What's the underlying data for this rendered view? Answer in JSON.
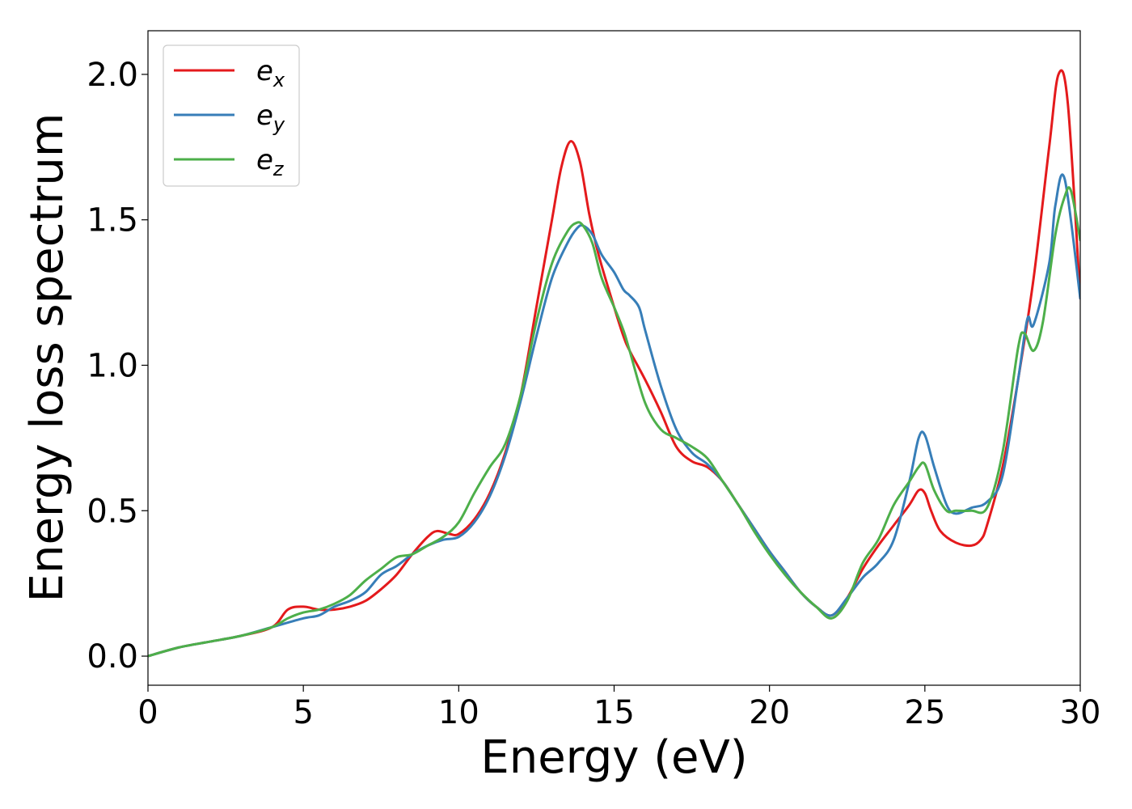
{
  "chart_data": {
    "type": "line",
    "title": "",
    "xlabel": "Energy (eV)",
    "ylabel": "Energy loss spectrum",
    "xlim": [
      0,
      30
    ],
    "ylim": [
      -0.1,
      2.15
    ],
    "xticks": [
      0,
      5,
      10,
      15,
      20,
      25,
      30
    ],
    "xtick_labels": [
      "0",
      "5",
      "10",
      "15",
      "20",
      "25",
      "30"
    ],
    "yticks": [
      0.0,
      0.5,
      1.0,
      1.5,
      2.0
    ],
    "ytick_labels": [
      "0.0",
      "0.5",
      "1.0",
      "1.5",
      "2.0"
    ],
    "grid": false,
    "legend_position": "top-left",
    "series": [
      {
        "name": "e_x",
        "label_base": "e",
        "label_sub": "x",
        "color": "#e41a1c",
        "x": [
          0,
          1,
          2,
          3,
          4,
          4.5,
          5,
          5.5,
          6,
          6.5,
          7,
          7.5,
          8,
          8.5,
          9,
          9.3,
          9.7,
          10,
          10.5,
          11,
          11.5,
          12,
          12.5,
          13,
          13.3,
          13.6,
          13.9,
          14.2,
          14.5,
          15,
          15.3,
          15.5,
          16,
          16.5,
          17,
          17.5,
          18,
          18.5,
          19,
          19.5,
          20,
          20.5,
          21,
          21.5,
          22,
          22.5,
          23,
          23.5,
          24,
          24.5,
          24.8,
          25,
          25.2,
          25.5,
          26,
          26.5,
          26.8,
          27,
          27.5,
          28,
          28.5,
          29,
          29.3,
          29.6,
          30
        ],
        "y": [
          0,
          0.03,
          0.05,
          0.07,
          0.1,
          0.16,
          0.17,
          0.16,
          0.16,
          0.17,
          0.19,
          0.23,
          0.28,
          0.35,
          0.41,
          0.43,
          0.42,
          0.42,
          0.47,
          0.56,
          0.7,
          0.9,
          1.2,
          1.5,
          1.68,
          1.77,
          1.7,
          1.52,
          1.38,
          1.2,
          1.1,
          1.05,
          0.95,
          0.84,
          0.72,
          0.67,
          0.65,
          0.6,
          0.52,
          0.44,
          0.36,
          0.29,
          0.22,
          0.17,
          0.14,
          0.2,
          0.3,
          0.38,
          0.45,
          0.52,
          0.57,
          0.56,
          0.5,
          0.43,
          0.39,
          0.38,
          0.4,
          0.45,
          0.65,
          0.95,
          1.3,
          1.75,
          2.0,
          1.9,
          1.23
        ]
      },
      {
        "name": "e_y",
        "label_base": "e",
        "label_sub": "y",
        "color": "#377eb8",
        "x": [
          0,
          1,
          2,
          3,
          4,
          5,
          5.5,
          6,
          6.5,
          7,
          7.5,
          8,
          8.5,
          9,
          9.5,
          10,
          10.5,
          11,
          11.5,
          12,
          12.5,
          13,
          13.5,
          13.8,
          14,
          14.3,
          14.6,
          15,
          15.3,
          15.5,
          15.8,
          16,
          16.5,
          17,
          17.5,
          18,
          18.5,
          19,
          19.5,
          20,
          20.5,
          21,
          21.5,
          22,
          22.5,
          23,
          23.5,
          24,
          24.5,
          24.8,
          25,
          25.3,
          25.7,
          26,
          26.5,
          27,
          27.5,
          28,
          28.3,
          28.5,
          29,
          29.2,
          29.5,
          30
        ],
        "y": [
          0,
          0.03,
          0.05,
          0.07,
          0.1,
          0.13,
          0.14,
          0.17,
          0.19,
          0.22,
          0.28,
          0.31,
          0.35,
          0.38,
          0.4,
          0.41,
          0.46,
          0.55,
          0.69,
          0.88,
          1.1,
          1.3,
          1.42,
          1.47,
          1.48,
          1.45,
          1.38,
          1.32,
          1.26,
          1.24,
          1.2,
          1.12,
          0.93,
          0.78,
          0.7,
          0.66,
          0.6,
          0.52,
          0.44,
          0.36,
          0.29,
          0.22,
          0.17,
          0.14,
          0.2,
          0.27,
          0.32,
          0.4,
          0.6,
          0.75,
          0.76,
          0.65,
          0.52,
          0.49,
          0.51,
          0.53,
          0.62,
          0.95,
          1.16,
          1.14,
          1.35,
          1.55,
          1.64,
          1.23
        ]
      },
      {
        "name": "e_z",
        "label_base": "e",
        "label_sub": "z",
        "color": "#4daf4a",
        "x": [
          0,
          1,
          2,
          3,
          4,
          4.5,
          5,
          5.5,
          6,
          6.5,
          7,
          7.5,
          8,
          8.5,
          9,
          9.5,
          10,
          10.5,
          11,
          11.5,
          12,
          12.5,
          13,
          13.5,
          13.8,
          14,
          14.3,
          14.6,
          15,
          15.3,
          15.5,
          16,
          16.5,
          17,
          17.5,
          18,
          18.5,
          19,
          19.5,
          20,
          20.5,
          21,
          21.5,
          22,
          22.5,
          23,
          23.5,
          24,
          24.5,
          24.8,
          25,
          25.3,
          25.7,
          26,
          26.5,
          27,
          27.5,
          28,
          28.2,
          28.5,
          28.8,
          29.2,
          29.5,
          29.7,
          30
        ],
        "y": [
          0,
          0.03,
          0.05,
          0.07,
          0.1,
          0.13,
          0.15,
          0.16,
          0.18,
          0.21,
          0.26,
          0.3,
          0.34,
          0.35,
          0.38,
          0.41,
          0.46,
          0.56,
          0.65,
          0.73,
          0.9,
          1.15,
          1.35,
          1.46,
          1.49,
          1.48,
          1.42,
          1.3,
          1.2,
          1.12,
          1.05,
          0.87,
          0.78,
          0.75,
          0.72,
          0.68,
          0.6,
          0.52,
          0.43,
          0.35,
          0.28,
          0.22,
          0.17,
          0.13,
          0.19,
          0.32,
          0.4,
          0.52,
          0.6,
          0.65,
          0.66,
          0.57,
          0.5,
          0.5,
          0.5,
          0.51,
          0.7,
          1.06,
          1.11,
          1.05,
          1.15,
          1.45,
          1.58,
          1.6,
          1.43
        ]
      }
    ]
  }
}
